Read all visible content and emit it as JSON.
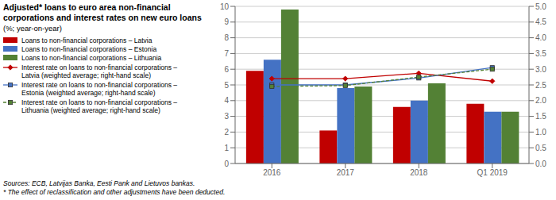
{
  "chart_data": {
    "type": "bar",
    "title": "Adjusted* loans to euro area non-financial corporations and interest rates on new euro loans",
    "subtitle": "(%; year-on-year)",
    "annotations": [
      "Sources: ECB, Latvijas Banka, Eesti Pank and Lietuvos bankas.",
      "* The effect of reclassification and other adjustments have been deducted."
    ],
    "categories": [
      "2016",
      "2017",
      "2018",
      "Q1 2019"
    ],
    "series": [
      {
        "name": "Loans to non-financial corporations – Latvia",
        "type": "bar",
        "color": "#c00000",
        "values": [
          5.9,
          2.1,
          3.6,
          3.8
        ]
      },
      {
        "name": "Loans to non-financial corporations – Estonia",
        "type": "bar",
        "color": "#4472c4",
        "values": [
          6.6,
          4.8,
          4.0,
          3.3
        ]
      },
      {
        "name": "Loans to non-financial corporations – Lithuania",
        "type": "bar",
        "color": "#538135",
        "values": [
          9.8,
          4.9,
          5.1,
          3.3
        ]
      },
      {
        "name": "Interest rate on loans to non-financial corporations – Latvia (weighted average; right-hand scale)",
        "type": "line",
        "axis": "y2",
        "color": "#c00000",
        "line_style": "solid",
        "marker": "diamond",
        "values": [
          2.7,
          2.7,
          2.87,
          2.62
        ]
      },
      {
        "name": "Interest rate on loans to non-financial corporations – Estonia (weighted average; right-hand scale)",
        "type": "line",
        "axis": "y2",
        "color": "#4472c4",
        "line_style": "solid",
        "marker": "square",
        "values": [
          2.5,
          2.5,
          2.72,
          3.05
        ]
      },
      {
        "name": "Interest rate on loans to non-financial corporations – Lithuania (weighted average; right-hand scale)",
        "type": "line",
        "axis": "y2",
        "color": "#538135",
        "line_style": "dashed",
        "marker": "square",
        "values": [
          2.45,
          2.48,
          2.75,
          3.0
        ]
      }
    ],
    "ylim": [
      0,
      10
    ],
    "yticks": [
      0,
      1,
      2,
      3,
      4,
      5,
      6,
      7,
      8,
      9,
      10
    ],
    "y2lim": [
      0,
      5
    ],
    "y2ticks": [
      {
        "value": 0,
        "label": "0.0"
      },
      0.5,
      {
        "value": 1,
        "label": "1.0"
      },
      1.5,
      {
        "value": 2,
        "label": "2.0"
      },
      2.5,
      {
        "value": 3,
        "label": "3.0"
      },
      3.5,
      {
        "value": 4,
        "label": "4.0"
      },
      4.5,
      {
        "value": 5,
        "label": "5.0"
      }
    ],
    "grid": true
  }
}
